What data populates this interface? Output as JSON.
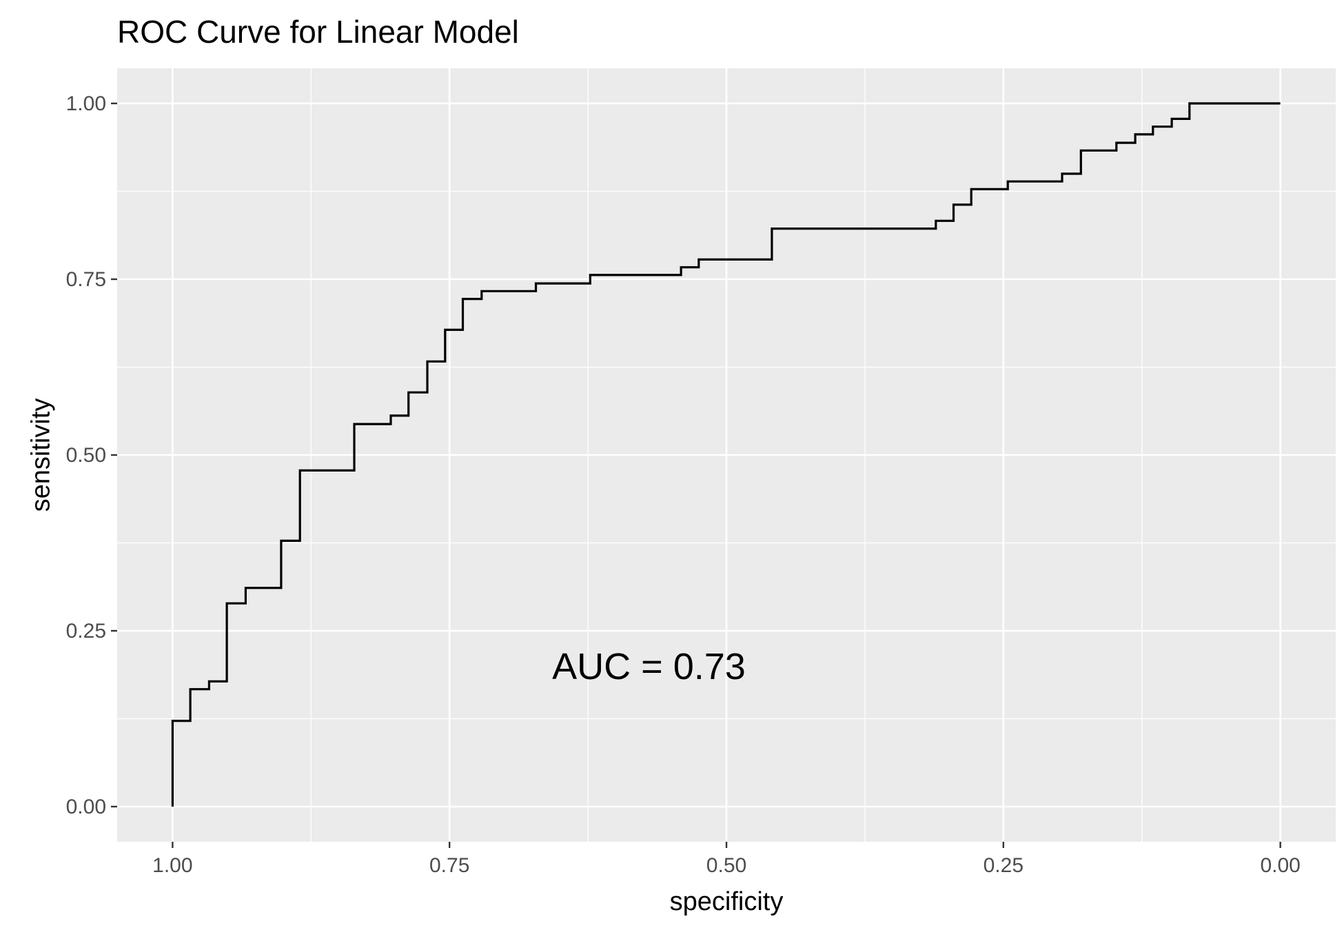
{
  "chart_data": {
    "type": "line",
    "title": "ROC Curve for Linear Model",
    "xlabel": "specificity",
    "ylabel": "sensitivity",
    "x_reversed": true,
    "xlim": [
      1.0,
      0.0
    ],
    "ylim": [
      0.0,
      1.0
    ],
    "x_ticks": [
      1.0,
      0.75,
      0.5,
      0.25,
      0.0
    ],
    "x_tick_labels": [
      "1.00",
      "0.75",
      "0.50",
      "0.25",
      "0.00"
    ],
    "y_ticks": [
      0.0,
      0.25,
      0.5,
      0.75,
      1.0
    ],
    "y_tick_labels": [
      "0.00",
      "0.25",
      "0.50",
      "0.75",
      "1.00"
    ],
    "grid": true,
    "background": "#ebebeb",
    "line_color": "#000000",
    "annotation": {
      "text": "AUC = 0.73",
      "x": 0.57,
      "y": 0.2
    },
    "series": [
      {
        "x": [
          1.0,
          1.0,
          0.984,
          0.984,
          0.967,
          0.967,
          0.951,
          0.951,
          0.934,
          0.934,
          0.902,
          0.902,
          0.885,
          0.885,
          0.836,
          0.836,
          0.803,
          0.803,
          0.787,
          0.787,
          0.77,
          0.77,
          0.754,
          0.754,
          0.738,
          0.738,
          0.721,
          0.721,
          0.672,
          0.672,
          0.623,
          0.623,
          0.541,
          0.541,
          0.525,
          0.525,
          0.459,
          0.459,
          0.311,
          0.311,
          0.295,
          0.295,
          0.279,
          0.279,
          0.246,
          0.246,
          0.197,
          0.197,
          0.18,
          0.18,
          0.148,
          0.148,
          0.131,
          0.131,
          0.115,
          0.115,
          0.098,
          0.098,
          0.082,
          0.082,
          0.0
        ],
        "y": [
          0.0,
          0.122,
          0.122,
          0.167,
          0.167,
          0.178,
          0.178,
          0.289,
          0.289,
          0.311,
          0.311,
          0.378,
          0.378,
          0.478,
          0.478,
          0.544,
          0.544,
          0.556,
          0.556,
          0.589,
          0.589,
          0.633,
          0.633,
          0.678,
          0.678,
          0.722,
          0.722,
          0.733,
          0.733,
          0.744,
          0.744,
          0.756,
          0.756,
          0.767,
          0.767,
          0.778,
          0.778,
          0.822,
          0.822,
          0.833,
          0.833,
          0.856,
          0.856,
          0.878,
          0.878,
          0.889,
          0.889,
          0.9,
          0.9,
          0.933,
          0.933,
          0.944,
          0.944,
          0.956,
          0.956,
          0.967,
          0.967,
          0.978,
          0.978,
          1.0,
          1.0
        ]
      }
    ]
  }
}
